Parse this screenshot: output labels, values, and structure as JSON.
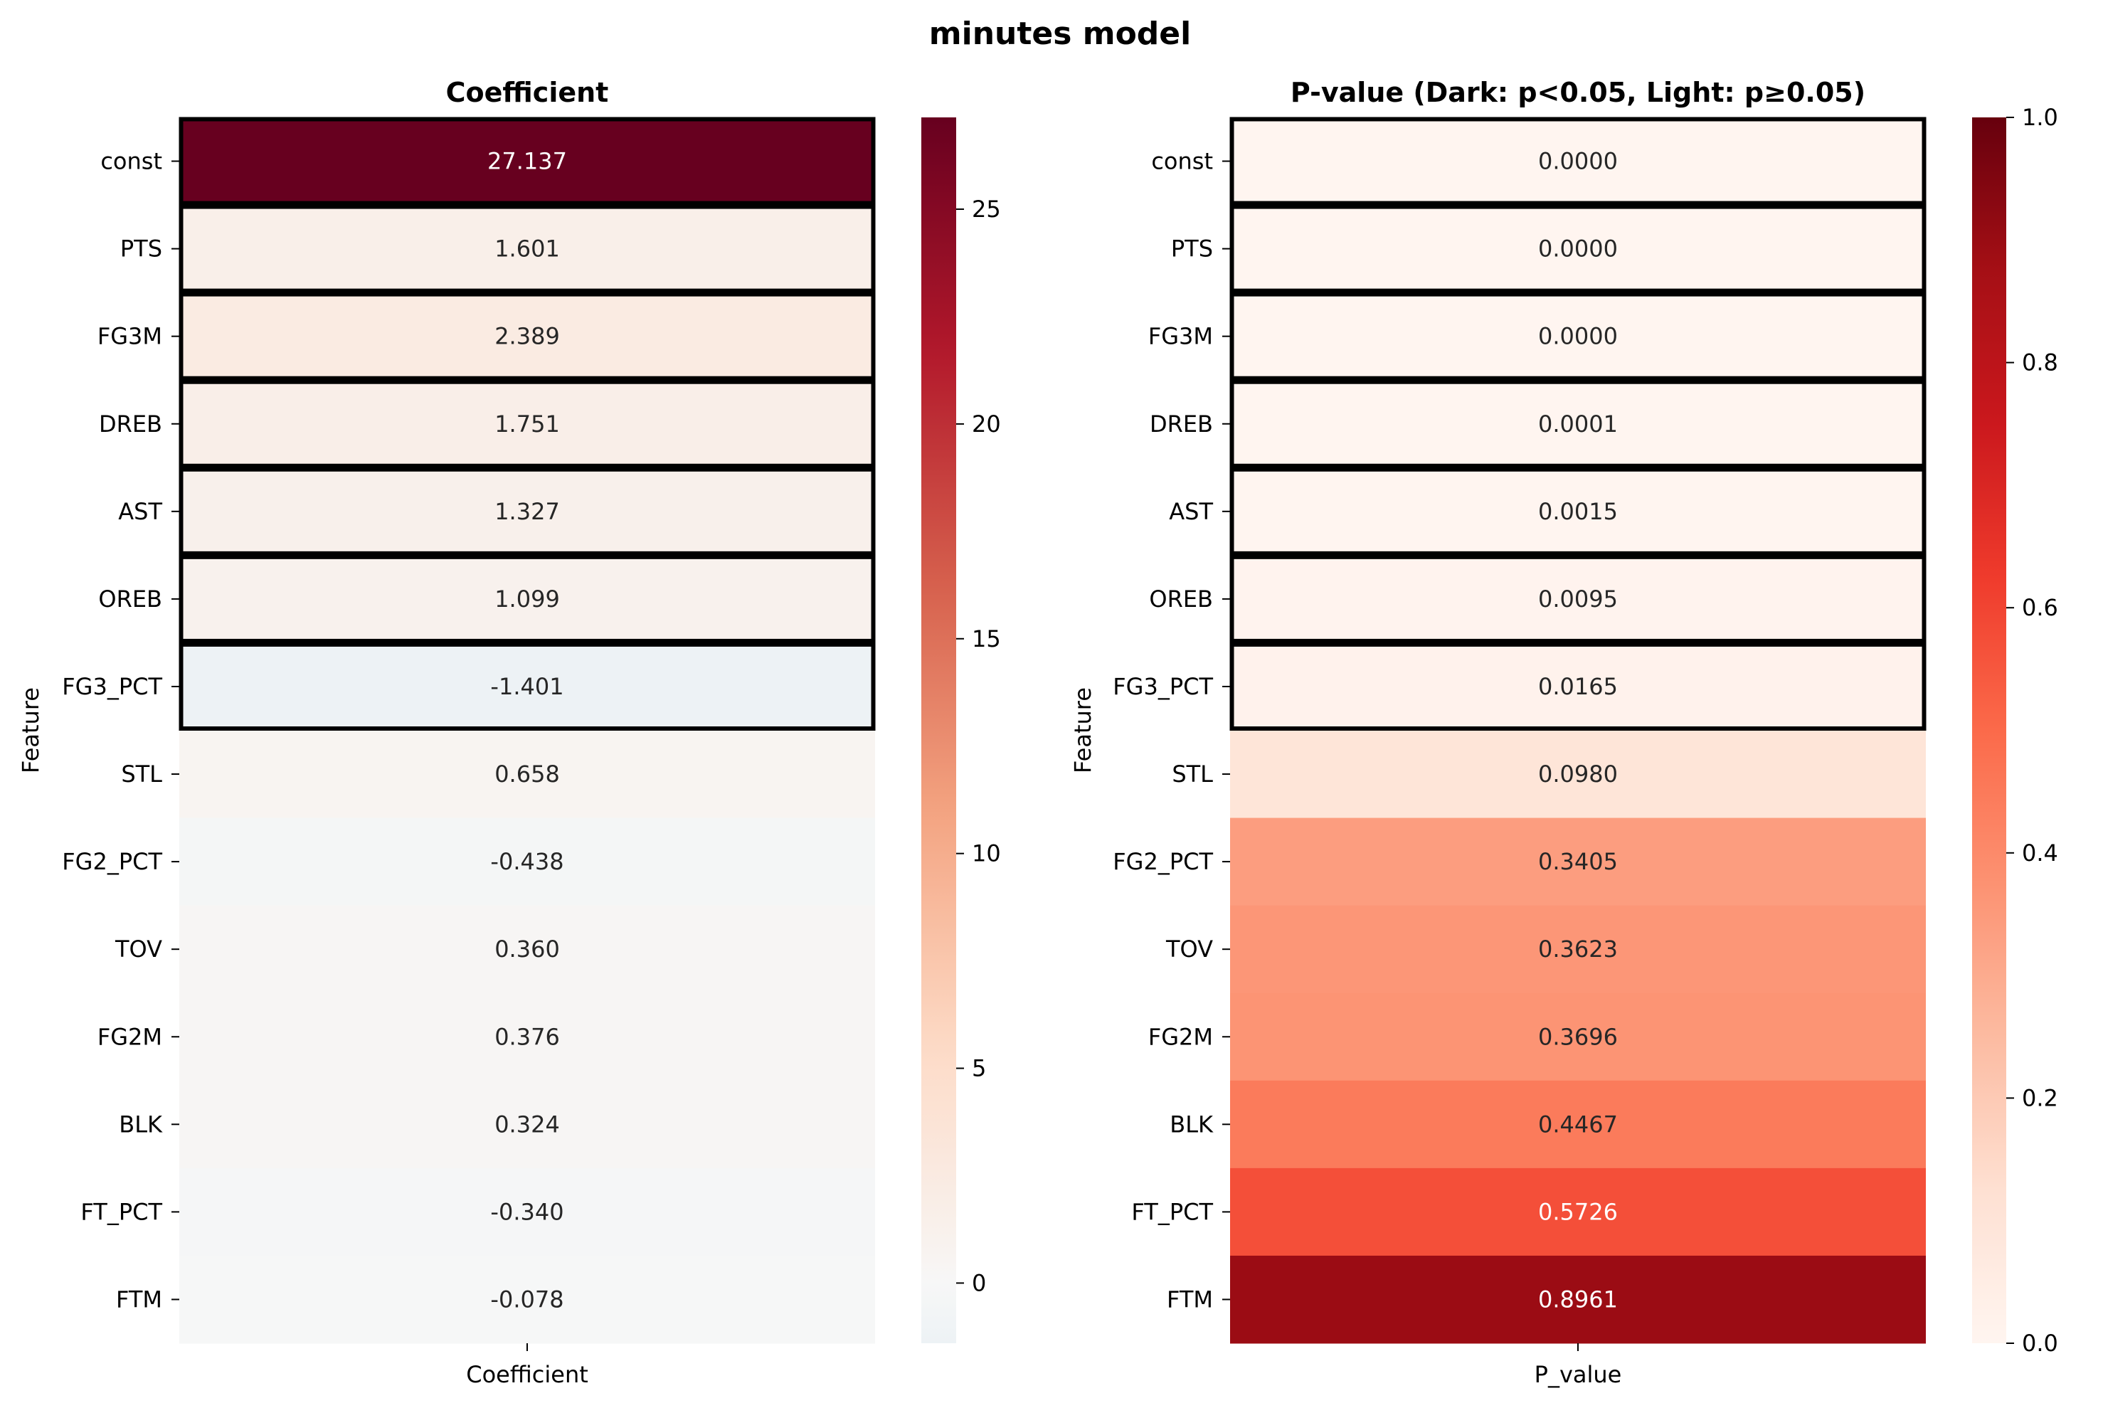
{
  "title": "minutes model",
  "chart_data": [
    {
      "type": "heatmap",
      "title": "Coefficient",
      "xlabel": "",
      "ylabel": "Feature",
      "column": "Coefficient",
      "features": [
        "const",
        "PTS",
        "FG3M",
        "DREB",
        "AST",
        "OREB",
        "FG3_PCT",
        "STL",
        "FG2_PCT",
        "TOV",
        "FG2M",
        "BLK",
        "FT_PCT",
        "FTM"
      ],
      "values": [
        27.137,
        1.601,
        2.389,
        1.751,
        1.327,
        1.099,
        -1.401,
        0.658,
        -0.438,
        0.36,
        0.376,
        0.324,
        -0.34,
        -0.078
      ],
      "labels": [
        "27.137",
        "1.601",
        "2.389",
        "1.751",
        "1.327",
        "1.099",
        "-1.401",
        "0.658",
        "-0.438",
        "0.360",
        "0.376",
        "0.324",
        "-0.340",
        "-0.078"
      ],
      "highlighted": [
        true,
        true,
        true,
        true,
        true,
        true,
        true,
        false,
        false,
        false,
        false,
        false,
        false,
        false
      ],
      "colorbar": {
        "min": -1.401,
        "max": 27.137,
        "center": 0,
        "ticks": [
          0,
          5,
          10,
          15,
          20,
          25
        ],
        "tick_labels": [
          "0",
          "5",
          "10",
          "15",
          "20",
          "25"
        ],
        "colormap": "RdBu_r (diverging, centered at 0)"
      }
    },
    {
      "type": "heatmap",
      "title": "P-value (Dark: p<0.05, Light: p≥0.05)",
      "xlabel": "",
      "ylabel": "Feature",
      "column": "P_value",
      "features": [
        "const",
        "PTS",
        "FG3M",
        "DREB",
        "AST",
        "OREB",
        "FG3_PCT",
        "STL",
        "FG2_PCT",
        "TOV",
        "FG2M",
        "BLK",
        "FT_PCT",
        "FTM"
      ],
      "values": [
        0.0,
        0.0,
        0.0,
        0.0001,
        0.0015,
        0.0095,
        0.0165,
        0.098,
        0.3405,
        0.3623,
        0.3696,
        0.4467,
        0.5726,
        0.8961
      ],
      "labels": [
        "0.0000",
        "0.0000",
        "0.0000",
        "0.0001",
        "0.0015",
        "0.0095",
        "0.0165",
        "0.0980",
        "0.3405",
        "0.3623",
        "0.3696",
        "0.4467",
        "0.5726",
        "0.8961"
      ],
      "highlighted": [
        true,
        true,
        true,
        true,
        true,
        true,
        true,
        false,
        false,
        false,
        false,
        false,
        false,
        false
      ],
      "colorbar": {
        "min": 0,
        "max": 1,
        "ticks": [
          0,
          0.2,
          0.4,
          0.6,
          0.8,
          1.0
        ],
        "tick_labels": [
          "0.0",
          "0.2",
          "0.4",
          "0.6",
          "0.8",
          "1.0"
        ],
        "colormap": "Reds"
      }
    }
  ]
}
